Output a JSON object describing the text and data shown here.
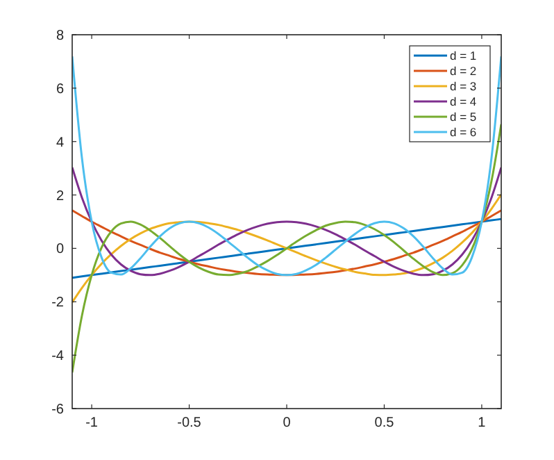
{
  "chart_data": {
    "type": "line",
    "x": [
      -1.1,
      -1.05,
      -1,
      -0.95,
      -0.9,
      -0.85,
      -0.8,
      -0.75,
      -0.7,
      -0.65,
      -0.6,
      -0.55,
      -0.5,
      -0.45,
      -0.4,
      -0.35,
      -0.3,
      -0.25,
      -0.2,
      -0.15,
      -0.1,
      -0.05,
      0,
      0.05,
      0.1,
      0.15,
      0.2,
      0.25,
      0.3,
      0.35,
      0.4,
      0.45,
      0.5,
      0.55,
      0.6,
      0.65,
      0.7,
      0.75,
      0.8,
      0.85,
      0.9,
      0.95,
      1,
      1.05,
      1.1
    ],
    "series": [
      {
        "name": "d = 1",
        "color": "#0072bd",
        "values": [
          -1.1,
          -1.05,
          -1,
          -0.95,
          -0.9,
          -0.85,
          -0.8,
          -0.75,
          -0.7,
          -0.65,
          -0.6,
          -0.55,
          -0.5,
          -0.45,
          -0.4,
          -0.35,
          -0.3,
          -0.25,
          -0.2,
          -0.15,
          -0.1,
          -0.05,
          0,
          0.05,
          0.1,
          0.15,
          0.2,
          0.25,
          0.3,
          0.35,
          0.4,
          0.45,
          0.5,
          0.55,
          0.6,
          0.65,
          0.7,
          0.75,
          0.8,
          0.85,
          0.9,
          0.95,
          1,
          1.05,
          1.1
        ]
      },
      {
        "name": "d = 2",
        "color": "#d95319",
        "values": [
          1.42,
          1.21,
          1,
          0.81,
          0.62,
          0.45,
          0.28,
          0.13,
          -0.02,
          -0.16,
          -0.28,
          -0.4,
          -0.5,
          -0.6,
          -0.68,
          -0.76,
          -0.82,
          -0.88,
          -0.92,
          -0.96,
          -0.98,
          -0.99,
          -1,
          -0.99,
          -0.98,
          -0.96,
          -0.92,
          -0.88,
          -0.82,
          -0.76,
          -0.68,
          -0.6,
          -0.5,
          -0.4,
          -0.28,
          -0.16,
          -0.02,
          0.13,
          0.28,
          0.45,
          0.62,
          0.81,
          1,
          1.21,
          1.42
        ]
      },
      {
        "name": "d = 3",
        "color": "#edb120",
        "values": [
          -2.02,
          -1.48,
          -1,
          -0.58,
          -0.22,
          0.09,
          0.35,
          0.56,
          0.73,
          0.85,
          0.94,
          0.98,
          1,
          0.99,
          0.94,
          0.88,
          0.79,
          0.69,
          0.57,
          0.44,
          0.3,
          0.15,
          0,
          -0.15,
          -0.3,
          -0.44,
          -0.57,
          -0.69,
          -0.79,
          -0.88,
          -0.94,
          -0.99,
          -1,
          -0.98,
          -0.94,
          -0.85,
          -0.73,
          -0.56,
          -0.35,
          -0.09,
          0.22,
          0.58,
          1,
          1.48,
          2.02
        ]
      },
      {
        "name": "d = 4",
        "color": "#7e2f8e",
        "values": [
          3.03,
          1.9,
          1,
          0.3,
          -0.23,
          -0.6,
          -0.84,
          -0.97,
          -1,
          -0.95,
          -0.84,
          -0.69,
          -0.5,
          -0.29,
          -0.08,
          0.14,
          0.34,
          0.53,
          0.69,
          0.82,
          0.92,
          0.98,
          1,
          0.98,
          0.92,
          0.82,
          0.69,
          0.53,
          0.34,
          0.14,
          -0.08,
          -0.29,
          -0.5,
          -0.69,
          -0.84,
          -0.95,
          -1,
          -0.97,
          -0.84,
          -0.6,
          -0.23,
          0.3,
          1,
          1.9,
          3.03
        ]
      },
      {
        "name": "d = 5",
        "color": "#77ac30",
        "values": [
          -4.65,
          -2.52,
          -1,
          0.02,
          0.63,
          0.93,
          1,
          0.89,
          0.67,
          0.39,
          0.08,
          -0.23,
          -0.5,
          -0.72,
          -0.88,
          -0.98,
          -1,
          -0.95,
          -0.85,
          -0.68,
          -0.48,
          -0.25,
          0,
          0.25,
          0.48,
          0.68,
          0.85,
          0.95,
          1,
          0.98,
          0.88,
          0.72,
          0.5,
          0.23,
          -0.08,
          -0.39,
          -0.67,
          -0.89,
          -1,
          -0.93,
          -0.63,
          -0.02,
          1,
          2.52,
          4.65
        ]
      },
      {
        "name": "d = 6",
        "color": "#4dbeee",
        "values": [
          7.19,
          3.38,
          1,
          -0.33,
          -0.91,
          -0.98,
          -0.75,
          -0.37,
          0.06,
          0.45,
          0.75,
          0.94,
          1,
          0.94,
          0.78,
          0.54,
          0.25,
          -0.05,
          -0.35,
          -0.62,
          -0.82,
          -0.96,
          -1,
          -0.96,
          -0.82,
          -0.62,
          -0.35,
          -0.05,
          0.25,
          0.54,
          0.78,
          0.94,
          1,
          0.94,
          0.75,
          0.45,
          0.06,
          -0.37,
          -0.75,
          -0.98,
          -0.91,
          -0.33,
          1,
          3.38,
          7.19
        ]
      }
    ],
    "xlim": [
      -1.1,
      1.1
    ],
    "xticks": [
      -1,
      -0.5,
      0,
      0.5,
      1
    ],
    "ylim": [
      -6,
      8
    ],
    "yticks": [
      -6,
      -4,
      -2,
      0,
      2,
      4,
      6,
      8
    ],
    "grid": false,
    "legend": "top right",
    "line_style": "solid"
  }
}
